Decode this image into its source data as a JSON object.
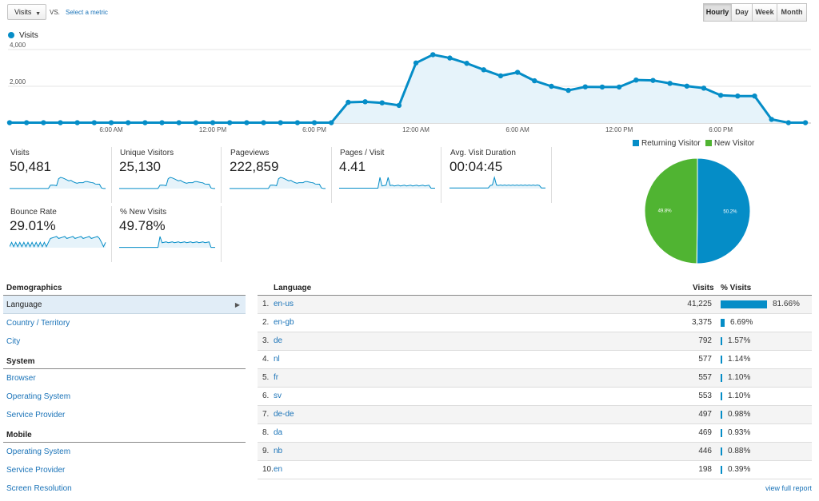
{
  "toolbar": {
    "metric": "Visits",
    "vs": "VS.",
    "select_metric": "Select a metric",
    "periods": [
      "Hourly",
      "Day",
      "Week",
      "Month"
    ],
    "active_period": "Hourly"
  },
  "chart_data": {
    "type": "area",
    "series": [
      {
        "name": "Visits",
        "color": "#058dc7",
        "values": [
          20,
          20,
          20,
          20,
          20,
          20,
          20,
          20,
          20,
          20,
          20,
          20,
          20,
          20,
          20,
          20,
          20,
          20,
          20,
          20,
          1130,
          1160,
          1100,
          960,
          3270,
          3720,
          3540,
          3250,
          2900,
          2570,
          2760,
          2300,
          2000,
          1780,
          1970,
          1960,
          1960,
          2340,
          2320,
          2160,
          2010,
          1900,
          1510,
          1470,
          1470,
          200,
          20,
          20
        ]
      }
    ],
    "x_tick_labels": [
      {
        "index": 6,
        "label": "6:00 AM"
      },
      {
        "index": 12,
        "label": "12:00 PM"
      },
      {
        "index": 18,
        "label": "6:00 PM"
      },
      {
        "index": 24,
        "label": "12:00 AM"
      },
      {
        "index": 30,
        "label": "6:00 AM"
      },
      {
        "index": 36,
        "label": "12:00 PM"
      },
      {
        "index": 42,
        "label": "6:00 PM"
      }
    ],
    "y_tick_labels": [
      "2,000",
      "4,000"
    ],
    "ylim": [
      0,
      4000
    ],
    "grid": true
  },
  "scorecards": [
    {
      "label": "Visits",
      "value": "50,481"
    },
    {
      "label": "Unique Visitors",
      "value": "25,130"
    },
    {
      "label": "Pageviews",
      "value": "222,859"
    },
    {
      "label": "Pages / Visit",
      "value": "4.41"
    },
    {
      "label": "Avg. Visit Duration",
      "value": "00:04:45"
    },
    {
      "label": "Bounce Rate",
      "value": "29.01%"
    },
    {
      "label": "% New Visits",
      "value": "49.78%"
    }
  ],
  "pie": {
    "legend": [
      {
        "label": "Returning Visitor",
        "color": "#058dc7"
      },
      {
        "label": "New Visitor",
        "color": "#50b432"
      }
    ],
    "slices": [
      {
        "label": "Returning Visitor",
        "percent": 50.2,
        "text": "50.2%",
        "color": "#058dc7"
      },
      {
        "label": "New Visitor",
        "percent": 49.8,
        "text": "49.8%",
        "color": "#50b432"
      }
    ]
  },
  "nav": {
    "sections": [
      {
        "title": "Demographics",
        "items": [
          "Language",
          "Country / Territory",
          "City"
        ]
      },
      {
        "title": "System",
        "items": [
          "Browser",
          "Operating System",
          "Service Provider"
        ]
      },
      {
        "title": "Mobile",
        "items": [
          "Operating System",
          "Service Provider",
          "Screen Resolution"
        ]
      }
    ],
    "selected": "Language"
  },
  "table": {
    "headers": {
      "dimension": "Language",
      "visits": "Visits",
      "percent": "% Visits"
    },
    "rows": [
      {
        "index": "1.",
        "language": "en-us",
        "visits": "41,225",
        "percent_text": "81.66%",
        "percent": 81.66
      },
      {
        "index": "2.",
        "language": "en-gb",
        "visits": "3,375",
        "percent_text": "6.69%",
        "percent": 6.69
      },
      {
        "index": "3.",
        "language": "de",
        "visits": "792",
        "percent_text": "1.57%",
        "percent": 1.57
      },
      {
        "index": "4.",
        "language": "nl",
        "visits": "577",
        "percent_text": "1.14%",
        "percent": 1.14
      },
      {
        "index": "5.",
        "language": "fr",
        "visits": "557",
        "percent_text": "1.10%",
        "percent": 1.1
      },
      {
        "index": "6.",
        "language": "sv",
        "visits": "553",
        "percent_text": "1.10%",
        "percent": 1.1
      },
      {
        "index": "7.",
        "language": "de-de",
        "visits": "497",
        "percent_text": "0.98%",
        "percent": 0.98
      },
      {
        "index": "8.",
        "language": "da",
        "visits": "469",
        "percent_text": "0.93%",
        "percent": 0.93
      },
      {
        "index": "9.",
        "language": "nb",
        "visits": "446",
        "percent_text": "0.88%",
        "percent": 0.88
      },
      {
        "index": "10.",
        "language": "en",
        "visits": "198",
        "percent_text": "0.39%",
        "percent": 0.39
      }
    ],
    "view_full_report": "view full report"
  }
}
